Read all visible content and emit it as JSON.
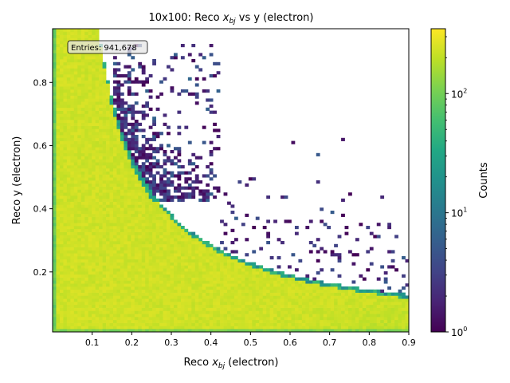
{
  "chart_data": {
    "type": "heatmap",
    "title": "10x100: Reco x_bj vs y (electron)",
    "title_prefix": "10x100: Reco ",
    "title_var": "x",
    "title_sub": "bj",
    "title_suffix": " vs y (electron)",
    "xlabel_prefix": "Reco ",
    "xlabel_var": "x",
    "xlabel_sub": "bj",
    "xlabel_suffix": " (electron)",
    "ylabel": "Reco y (electron)",
    "xlim": [
      0.0,
      0.9
    ],
    "ylim": [
      0.01,
      0.97
    ],
    "xticks": [
      {
        "value": 0.1,
        "label": "0.1"
      },
      {
        "value": 0.2,
        "label": "0.2"
      },
      {
        "value": 0.3,
        "label": "0.3"
      },
      {
        "value": 0.4,
        "label": "0.4"
      },
      {
        "value": 0.5,
        "label": "0.5"
      },
      {
        "value": 0.6,
        "label": "0.6"
      },
      {
        "value": 0.7,
        "label": "0.7"
      },
      {
        "value": 0.8,
        "label": "0.8"
      },
      {
        "value": 0.9,
        "label": "0.9"
      }
    ],
    "yticks": [
      {
        "value": 0.2,
        "label": "0.2"
      },
      {
        "value": 0.4,
        "label": "0.4"
      },
      {
        "value": 0.6,
        "label": "0.6"
      },
      {
        "value": 0.8,
        "label": "0.8"
      }
    ],
    "bins_x": 100,
    "bins_y": 100,
    "colorbar": {
      "label": "Counts",
      "scale": "log",
      "range": [
        1,
        350
      ],
      "colormap": "viridis",
      "ticks": [
        {
          "value": 1,
          "base": "10",
          "exp": "0"
        },
        {
          "value": 10,
          "base": "10",
          "exp": "1"
        },
        {
          "value": 100,
          "base": "10",
          "exp": "2"
        }
      ]
    },
    "stats_box": {
      "label": "Entries: 941,678"
    },
    "density_model": {
      "dense_region": "y >= 0.1165 / (x + 0.0049) and y >= 0.02 boundary (kinematic limit curve)",
      "dense_level_range": [
        120,
        250
      ],
      "sparse_tail": "scattered low counts (1-8) above the boundary, densest near x 0.17-0.4, y 0.45-0.9"
    }
  }
}
